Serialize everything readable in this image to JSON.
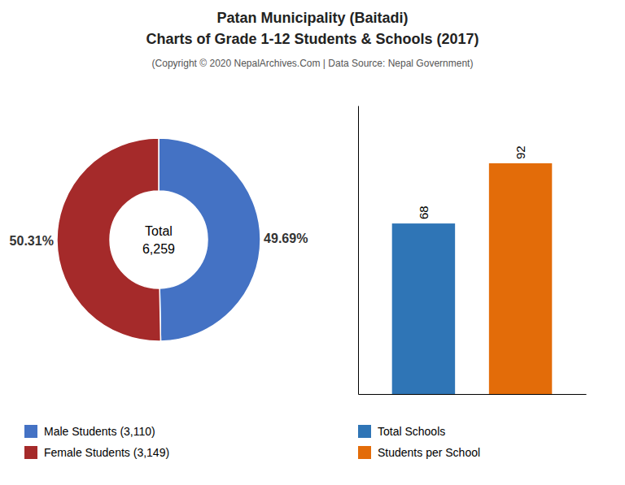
{
  "chart_data": [
    {
      "type": "pie",
      "title": "Patan Municipality (Baitadi)\nCharts of Grade 1-12 Students & Schools (2017)",
      "subtitle": "(Copyright © 2020 NepalArchives.Com | Data Source: Nepal Government)",
      "categories": [
        "Male Students (3,110)",
        "Female Students (3,149)"
      ],
      "values": [
        49.69,
        50.31
      ],
      "value_labels": [
        "49.69%",
        "50.31%"
      ],
      "colors": [
        "#4472c4",
        "#a52a2a"
      ],
      "annotations": [
        "Total",
        "6,259"
      ],
      "data_labels": true,
      "legend": "lower left"
    },
    {
      "type": "bar",
      "categories": [
        "Total Schools",
        "Students per School"
      ],
      "values": [
        68,
        92
      ],
      "colors": [
        "#2f75b6",
        "#e36c09"
      ],
      "ylim": [
        0,
        115
      ],
      "yticks": [],
      "data_labels": true,
      "tick_labels": false,
      "legend": "lower left"
    }
  ]
}
